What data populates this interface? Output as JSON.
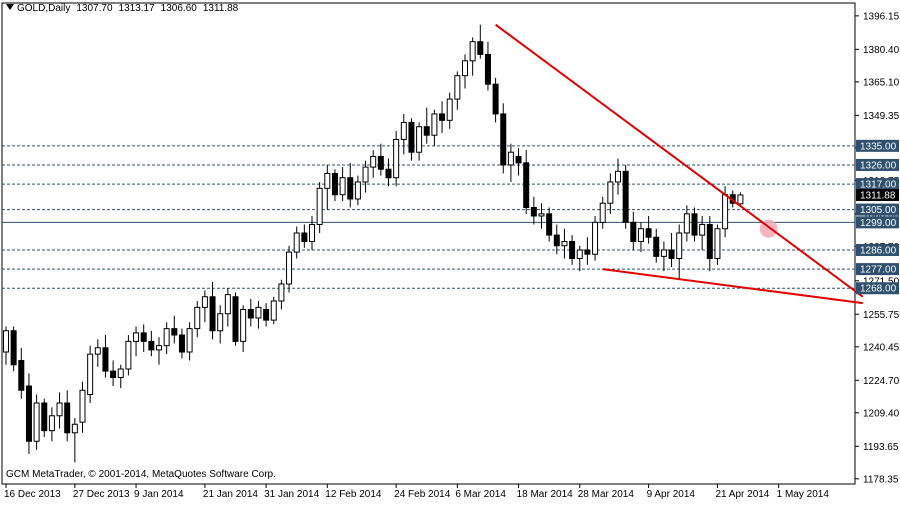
{
  "header": {
    "symbol": "GOLD,Daily",
    "open": "1307.70",
    "high": "1313.17",
    "low": "1306.60",
    "close": "1311.88"
  },
  "footer": "GCM MetaTrader, © 2001-2014, MetaQuotes Software Corp.",
  "chart_data": {
    "type": "candlestick",
    "ylim": [
      1175.9,
      1402.2
    ],
    "y_ticks": [
      1396.15,
      1380.4,
      1365.1,
      1349.35,
      1334.05,
      1318.75,
      1303.0,
      1287.7,
      1271.5,
      1255.75,
      1240.45,
      1224.7,
      1209.4,
      1193.65,
      1178.35
    ],
    "x_tick_labels": [
      "16 Dec 2013",
      "27 Dec 2013",
      "9 Jan 2014",
      "21 Jan 2014",
      "31 Jan 2014",
      "12 Feb 2014",
      "24 Feb 2014",
      "6 Mar 2014",
      "18 Mar 2014",
      "28 Mar 2014",
      "9 Apr 2014",
      "21 Apr 2014",
      "1 May 2014"
    ],
    "x_tick_bars": [
      0,
      9,
      17,
      26,
      34,
      42,
      51,
      59,
      67,
      75,
      84,
      93,
      101
    ],
    "levels": [
      {
        "value": 1335.0,
        "label": "1335.00"
      },
      {
        "value": 1326.0,
        "label": "1326.00"
      },
      {
        "value": 1317.0,
        "label": "1317.00"
      },
      {
        "value": 1305.0,
        "label": "1305.00"
      },
      {
        "value": 1286.0,
        "label": "1286.00"
      },
      {
        "value": 1277.0,
        "label": "1277.00"
      },
      {
        "value": 1268.0,
        "label": "1268.00"
      }
    ],
    "solid_level": {
      "value": 1299.0,
      "label": "1299.00"
    },
    "last_price": {
      "value": 1311.88,
      "label": "1311.88"
    },
    "trendlines": [
      {
        "from": [
          64,
          1392.0
        ],
        "to": [
          112,
          1264.0
        ]
      },
      {
        "from": [
          78,
          1277.0
        ],
        "to": [
          112,
          1261.0
        ]
      }
    ],
    "highlight": {
      "bar": 101,
      "value": 1296.0
    },
    "candles": [
      [
        1238,
        1250,
        1232,
        1248
      ],
      [
        1248,
        1250,
        1229,
        1232
      ],
      [
        1234,
        1240,
        1216,
        1220
      ],
      [
        1222,
        1228,
        1190,
        1196
      ],
      [
        1196,
        1218,
        1192,
        1214
      ],
      [
        1214,
        1216,
        1198,
        1201
      ],
      [
        1201,
        1212,
        1196,
        1208
      ],
      [
        1208,
        1219,
        1202,
        1214
      ],
      [
        1214,
        1220,
        1196,
        1200
      ],
      [
        1200,
        1207,
        1186,
        1204
      ],
      [
        1205,
        1224,
        1200,
        1220
      ],
      [
        1218,
        1241,
        1214,
        1237
      ],
      [
        1237,
        1244,
        1231,
        1240
      ],
      [
        1240,
        1246,
        1226,
        1229
      ],
      [
        1229,
        1234,
        1222,
        1226
      ],
      [
        1226,
        1232,
        1221,
        1230
      ],
      [
        1230,
        1246,
        1227,
        1243
      ],
      [
        1243,
        1250,
        1236,
        1247
      ],
      [
        1247,
        1251,
        1238,
        1243
      ],
      [
        1243,
        1248,
        1236,
        1239
      ],
      [
        1239,
        1245,
        1232,
        1241
      ],
      [
        1241,
        1252,
        1237,
        1249
      ],
      [
        1249,
        1255,
        1242,
        1246
      ],
      [
        1246,
        1249,
        1235,
        1238
      ],
      [
        1238,
        1252,
        1234,
        1249
      ],
      [
        1249,
        1262,
        1245,
        1259
      ],
      [
        1259,
        1267,
        1252,
        1264
      ],
      [
        1264,
        1271,
        1244,
        1248
      ],
      [
        1248,
        1260,
        1242,
        1256
      ],
      [
        1256,
        1268,
        1250,
        1265
      ],
      [
        1264,
        1266,
        1241,
        1243
      ],
      [
        1243,
        1260,
        1238,
        1258
      ],
      [
        1258,
        1263,
        1250,
        1254
      ],
      [
        1254,
        1262,
        1249,
        1259
      ],
      [
        1258,
        1261,
        1250,
        1253
      ],
      [
        1253,
        1264,
        1251,
        1262
      ],
      [
        1262,
        1272,
        1258,
        1270
      ],
      [
        1270,
        1288,
        1266,
        1285
      ],
      [
        1285,
        1297,
        1282,
        1294
      ],
      [
        1294,
        1298,
        1287,
        1290
      ],
      [
        1290,
        1302,
        1286,
        1298
      ],
      [
        1298,
        1318,
        1294,
        1315
      ],
      [
        1315,
        1326,
        1305,
        1322
      ],
      [
        1322,
        1324,
        1309,
        1312
      ],
      [
        1312,
        1325,
        1309,
        1320
      ],
      [
        1320,
        1327,
        1306,
        1310
      ],
      [
        1310,
        1321,
        1307,
        1318
      ],
      [
        1318,
        1328,
        1313,
        1325
      ],
      [
        1325,
        1333,
        1320,
        1330
      ],
      [
        1330,
        1336,
        1321,
        1324
      ],
      [
        1324,
        1329,
        1316,
        1320
      ],
      [
        1320,
        1342,
        1316,
        1338
      ],
      [
        1338,
        1350,
        1331,
        1346
      ],
      [
        1346,
        1348,
        1328,
        1332
      ],
      [
        1332,
        1346,
        1328,
        1344
      ],
      [
        1344,
        1353,
        1336,
        1340
      ],
      [
        1340,
        1352,
        1335,
        1350
      ],
      [
        1350,
        1356,
        1341,
        1347
      ],
      [
        1347,
        1360,
        1343,
        1357
      ],
      [
        1357,
        1370,
        1352,
        1368
      ],
      [
        1368,
        1378,
        1362,
        1375
      ],
      [
        1375,
        1386,
        1368,
        1384
      ],
      [
        1384,
        1392,
        1376,
        1378
      ],
      [
        1378,
        1384,
        1361,
        1364
      ],
      [
        1364,
        1367,
        1346,
        1350
      ],
      [
        1350,
        1355,
        1322,
        1326
      ],
      [
        1326,
        1336,
        1318,
        1332
      ],
      [
        1330,
        1334,
        1321,
        1327
      ],
      [
        1327,
        1333,
        1303,
        1306
      ],
      [
        1306,
        1311,
        1298,
        1302
      ],
      [
        1302,
        1308,
        1296,
        1303
      ],
      [
        1303,
        1306,
        1290,
        1293
      ],
      [
        1293,
        1298,
        1284,
        1288
      ],
      [
        1288,
        1296,
        1282,
        1290
      ],
      [
        1290,
        1293,
        1279,
        1282
      ],
      [
        1282,
        1288,
        1276,
        1286
      ],
      [
        1286,
        1292,
        1279,
        1284
      ],
      [
        1284,
        1302,
        1281,
        1299
      ],
      [
        1299,
        1311,
        1296,
        1308
      ],
      [
        1308,
        1322,
        1303,
        1318
      ],
      [
        1318,
        1329,
        1312,
        1323
      ],
      [
        1323,
        1326,
        1296,
        1299
      ],
      [
        1299,
        1304,
        1286,
        1290
      ],
      [
        1290,
        1299,
        1285,
        1296
      ],
      [
        1296,
        1302,
        1289,
        1292
      ],
      [
        1292,
        1296,
        1280,
        1283
      ],
      [
        1283,
        1290,
        1276,
        1286
      ],
      [
        1286,
        1294,
        1278,
        1282
      ],
      [
        1282,
        1298,
        1272,
        1294
      ],
      [
        1294,
        1307,
        1290,
        1303
      ],
      [
        1303,
        1306,
        1290,
        1293
      ],
      [
        1293,
        1302,
        1286,
        1298
      ],
      [
        1298,
        1302,
        1276,
        1282
      ],
      [
        1282,
        1298,
        1279,
        1296
      ],
      [
        1296,
        1316,
        1292,
        1312
      ],
      [
        1312,
        1314,
        1306,
        1308
      ],
      [
        1307.7,
        1313.17,
        1306.6,
        1311.88
      ]
    ]
  }
}
